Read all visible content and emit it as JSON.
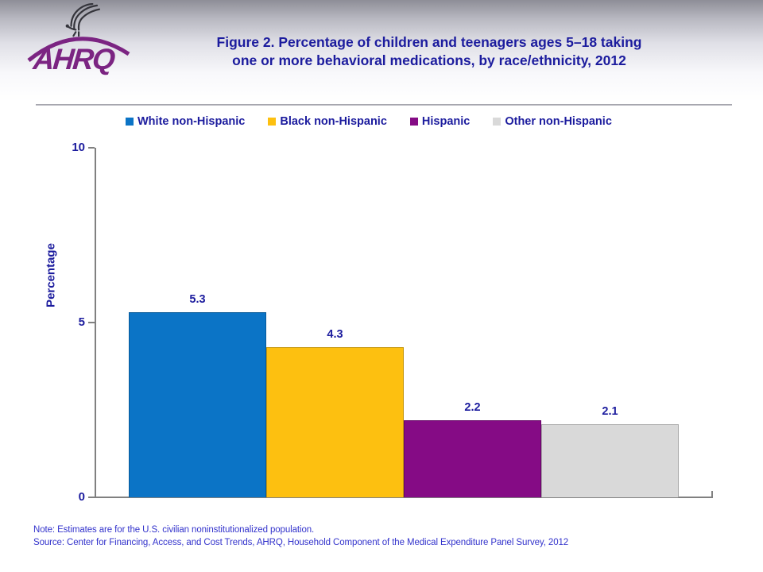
{
  "header": {
    "org": "AHRQ",
    "title_line1": "Figure 2. Percentage of children and teenagers ages 5–18 taking",
    "title_line2": "one or more behavioral medications, by race/ethnicity, 2012"
  },
  "chart_data": {
    "type": "bar",
    "title": "Figure 2. Percentage of children and teenagers ages 5–18 taking one or more behavioral medications, by race/ethnicity, 2012",
    "categories": [
      "White non-Hispanic",
      "Black non-Hispanic",
      "Hispanic",
      "Other non-Hispanic"
    ],
    "values": [
      5.3,
      4.3,
      2.2,
      2.1
    ],
    "value_labels": [
      "5.3",
      "4.3",
      "2.2",
      "2.1"
    ],
    "colors": [
      "#0b74c6",
      "#fdc010",
      "#850b85",
      "#d9d9d9"
    ],
    "xlabel": "",
    "ylabel": "Percentage",
    "ylim": [
      0,
      10
    ],
    "yticks": [
      0,
      5,
      10
    ],
    "grid": false,
    "legend_position": "top",
    "label_color": "#1c1c9e",
    "axis_color": "#808080"
  },
  "footer": {
    "note": "Note: Estimates are for the U.S. civilian noninstitutionalized population.",
    "source": "Source: Center for Financing, Access, and Cost Trends, AHRQ, Household Component of the Medical Expenditure Panel Survey, 2012"
  }
}
